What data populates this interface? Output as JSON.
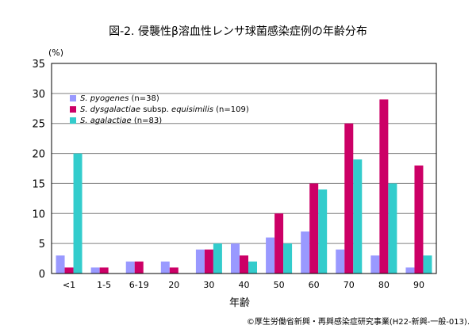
{
  "chart_data": {
    "type": "bar",
    "title": "図-2. 侵襲性β溶血性レンサ球菌感染症例の年齢分布",
    "y_unit": "(%)",
    "xlabel": "年齢",
    "ylabel": "",
    "categories": [
      "<1",
      "1-5",
      "6-19",
      "20",
      "30",
      "40",
      "50",
      "60",
      "70",
      "80",
      "90"
    ],
    "ylim": [
      0,
      35
    ],
    "yticks": [
      0,
      5,
      10,
      15,
      20,
      25,
      30,
      35
    ],
    "grid": true,
    "legend": "top-left",
    "series": [
      {
        "species": "S. pyogenes",
        "suffix": " (n=38)",
        "color": "#9999ff",
        "values": [
          3,
          1,
          2,
          2,
          4,
          5,
          6,
          7,
          4,
          3,
          1
        ]
      },
      {
        "species": "S. dysgalactiae",
        "mid": " subsp. ",
        "species2": "equisimilis",
        "suffix": " (n=109)",
        "color": "#cc0066",
        "values": [
          1,
          1,
          2,
          1,
          4,
          3,
          10,
          15,
          25,
          29,
          18
        ]
      },
      {
        "species": "S. agalactiae",
        "suffix": " (n=83)",
        "color": "#33cccc",
        "values": [
          20,
          0,
          0,
          0,
          5,
          2,
          5,
          14,
          19,
          15,
          3
        ]
      }
    ],
    "source": "©厚生労働省新興・再興感染症研究事業(H22-新興-一般-013)."
  }
}
